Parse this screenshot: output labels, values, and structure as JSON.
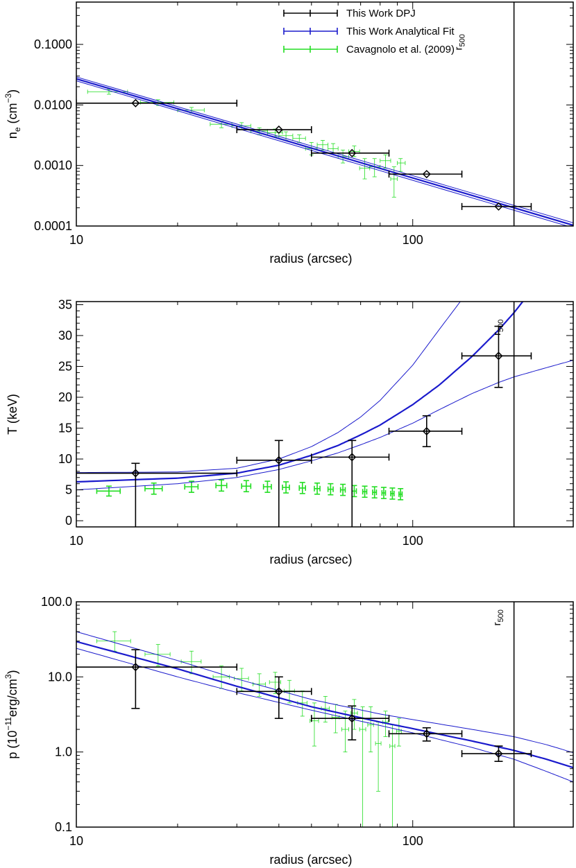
{
  "chart_data": [
    {
      "type": "scatter",
      "xlabel": "radius (arcsec)",
      "ylabel": "n",
      "ylabel_sub": "e",
      "ylabel_unit_pre": " (cm",
      "ylabel_unit_sup": "−3",
      "ylabel_unit_post": ")",
      "xscale": "log",
      "yscale": "log",
      "xlim": [
        10,
        300
      ],
      "ylim": [
        0.0001,
        0.5
      ],
      "xticks": [
        {
          "v": 10,
          "label": "10"
        },
        {
          "v": 100,
          "label": "100"
        }
      ],
      "yticks": [
        {
          "v": 0.0001,
          "label": "0.0001"
        },
        {
          "v": 0.001,
          "label": "0.0010"
        },
        {
          "v": 0.01,
          "label": "0.0100"
        },
        {
          "v": 0.1,
          "label": "0.1000"
        }
      ],
      "r500": {
        "x": 200,
        "label": "r",
        "sub": "500",
        "label_x": 140,
        "label_y": 0.08
      },
      "legend": {
        "position": "top-center",
        "entries": [
          {
            "label": "This Work DPJ",
            "color": "#000000"
          },
          {
            "label": "This Work Analytical Fit",
            "color": "#1a1acc"
          },
          {
            "label": "Cavagnolo et al. (2009)",
            "color": "#22dd22"
          }
        ]
      },
      "dpj": [
        {
          "x": 15,
          "y": 0.0107,
          "xlo": 10,
          "xhi": 30,
          "ylo": 0.0107,
          "yhi": 0.0107
        },
        {
          "x": 40,
          "y": 0.0039,
          "xlo": 30,
          "xhi": 50,
          "ylo": 0.0039,
          "yhi": 0.0039
        },
        {
          "x": 66,
          "y": 0.0016,
          "xlo": 50,
          "xhi": 85,
          "ylo": 0.0016,
          "yhi": 0.0016
        },
        {
          "x": 110,
          "y": 0.00072,
          "xlo": 85,
          "xhi": 140,
          "ylo": 0.00072,
          "yhi": 0.00072
        },
        {
          "x": 180,
          "y": 0.00021,
          "xlo": 140,
          "xhi": 225,
          "ylo": 0.00021,
          "yhi": 0.00021
        }
      ],
      "fit": {
        "x": [
          10,
          300
        ],
        "best": [
          0.027,
          0.000103
        ],
        "lower": [
          0.025,
          9.35e-05
        ],
        "upper": [
          0.029,
          0.000113
        ]
      },
      "cavagnolo": [
        {
          "x": 12.5,
          "y": 0.0165,
          "xlo": 10.8,
          "xhi": 14.2,
          "ylo": 0.015,
          "yhi": 0.018
        },
        {
          "x": 17.5,
          "y": 0.011,
          "xlo": 15.5,
          "xhi": 19.5,
          "ylo": 0.0098,
          "yhi": 0.0122
        },
        {
          "x": 22,
          "y": 0.0082,
          "xlo": 20,
          "xhi": 24,
          "ylo": 0.0073,
          "yhi": 0.0091
        },
        {
          "x": 27,
          "y": 0.0048,
          "xlo": 25,
          "xhi": 29,
          "ylo": 0.0042,
          "yhi": 0.0054
        },
        {
          "x": 31,
          "y": 0.0045,
          "xlo": 29,
          "xhi": 33,
          "ylo": 0.0039,
          "yhi": 0.0051
        },
        {
          "x": 35,
          "y": 0.0037,
          "xlo": 33,
          "xhi": 37,
          "ylo": 0.0032,
          "yhi": 0.0042
        },
        {
          "x": 39,
          "y": 0.0035,
          "xlo": 37,
          "xhi": 41,
          "ylo": 0.003,
          "yhi": 0.004
        },
        {
          "x": 42,
          "y": 0.0031,
          "xlo": 40,
          "xhi": 44,
          "ylo": 0.0026,
          "yhi": 0.0036
        },
        {
          "x": 46,
          "y": 0.0028,
          "xlo": 44,
          "xhi": 48,
          "ylo": 0.0024,
          "yhi": 0.0032
        },
        {
          "x": 50,
          "y": 0.0019,
          "xlo": 48,
          "xhi": 52,
          "ylo": 0.0015,
          "yhi": 0.0024
        },
        {
          "x": 54,
          "y": 0.0022,
          "xlo": 52,
          "xhi": 56,
          "ylo": 0.0018,
          "yhi": 0.0026
        },
        {
          "x": 58,
          "y": 0.0019,
          "xlo": 56,
          "xhi": 60,
          "ylo": 0.0016,
          "yhi": 0.0023
        },
        {
          "x": 62,
          "y": 0.0014,
          "xlo": 60,
          "xhi": 64.5,
          "ylo": 0.0011,
          "yhi": 0.0018
        },
        {
          "x": 67,
          "y": 0.0017,
          "xlo": 64.5,
          "xhi": 69.5,
          "ylo": 0.0014,
          "yhi": 0.0021
        },
        {
          "x": 72,
          "y": 0.0009,
          "xlo": 69.5,
          "xhi": 74.5,
          "ylo": 0.0006,
          "yhi": 0.0013
        },
        {
          "x": 77,
          "y": 0.00095,
          "xlo": 74.5,
          "xhi": 80,
          "ylo": 0.00065,
          "yhi": 0.0013
        },
        {
          "x": 83,
          "y": 0.0012,
          "xlo": 80,
          "xhi": 86,
          "ylo": 0.0009,
          "yhi": 0.0015
        },
        {
          "x": 88,
          "y": 0.0006,
          "xlo": 86,
          "xhi": 90,
          "ylo": 0.0003,
          "yhi": 0.00095
        },
        {
          "x": 92,
          "y": 0.0011,
          "xlo": 90,
          "xhi": 95,
          "ylo": 0.0008,
          "yhi": 0.0013
        }
      ]
    },
    {
      "type": "scatter",
      "xlabel": "radius (arcsec)",
      "ylabel": "T (keV)",
      "xscale": "log",
      "yscale": "linear",
      "xlim": [
        10,
        300
      ],
      "ylim": [
        -1,
        35.5
      ],
      "xticks": [
        {
          "v": 10,
          "label": "10"
        },
        {
          "v": 100,
          "label": "100"
        }
      ],
      "yticks": [
        {
          "v": 0,
          "label": "0"
        },
        {
          "v": 5,
          "label": "5"
        },
        {
          "v": 10,
          "label": "10"
        },
        {
          "v": 15,
          "label": "15"
        },
        {
          "v": 20,
          "label": "20"
        },
        {
          "v": 25,
          "label": "25"
        },
        {
          "v": 30,
          "label": "30"
        },
        {
          "v": 35,
          "label": "35"
        }
      ],
      "r500": {
        "x": 200,
        "label": "r",
        "sub": "500",
        "label_x": 182,
        "label_y": 30
      },
      "dpj": [
        {
          "x": 15,
          "y": 7.7,
          "xlo": 10,
          "xhi": 30,
          "ylo": -1,
          "yhi": 9.3
        },
        {
          "x": 40,
          "y": 9.8,
          "xlo": 30,
          "xhi": 50,
          "ylo": -1,
          "yhi": 13
        },
        {
          "x": 66,
          "y": 10.3,
          "xlo": 50,
          "xhi": 85,
          "ylo": -1,
          "yhi": 13
        },
        {
          "x": 110,
          "y": 14.5,
          "xlo": 85,
          "xhi": 140,
          "ylo": 12,
          "yhi": 17
        },
        {
          "x": 180,
          "y": 26.7,
          "xlo": 140,
          "xhi": 225,
          "ylo": 21.6,
          "yhi": 31.5
        }
      ],
      "fit": {
        "x": [
          10,
          20,
          30,
          40,
          50,
          60,
          70,
          80,
          100,
          120,
          150,
          180,
          200,
          250,
          300
        ],
        "best": [
          6.3,
          6.9,
          7.7,
          9.0,
          10.6,
          12.2,
          13.9,
          15.5,
          18.8,
          22.0,
          26.6,
          30.9,
          33.7,
          40.4,
          46.7
        ],
        "lower": [
          5.0,
          6.0,
          7.0,
          8.3,
          9.7,
          11.0,
          12.3,
          13.5,
          15.8,
          18.0,
          20.6,
          22.4,
          23.3,
          24.8,
          26.0
        ],
        "upper": [
          7.8,
          7.9,
          8.5,
          10.0,
          12.0,
          14.3,
          16.8,
          19.5,
          25.2,
          31.0,
          38.0,
          44.0,
          48.0,
          55.0,
          60.0
        ]
      },
      "cavagnolo": [
        {
          "x": 12.5,
          "y": 4.8,
          "xlo": 11.5,
          "xhi": 13.5,
          "ylo": 4.0,
          "yhi": 5.6
        },
        {
          "x": 17,
          "y": 5.2,
          "xlo": 16,
          "xhi": 18,
          "ylo": 4.3,
          "yhi": 6.1
        },
        {
          "x": 22,
          "y": 5.5,
          "xlo": 21,
          "xhi": 23,
          "ylo": 4.6,
          "yhi": 6.4
        },
        {
          "x": 27,
          "y": 5.7,
          "xlo": 26,
          "xhi": 28,
          "ylo": 4.8,
          "yhi": 6.6
        },
        {
          "x": 32,
          "y": 5.6,
          "xlo": 31,
          "xhi": 33,
          "ylo": 4.7,
          "yhi": 6.5
        },
        {
          "x": 37,
          "y": 5.5,
          "xlo": 36,
          "xhi": 38,
          "ylo": 4.6,
          "yhi": 6.4
        },
        {
          "x": 42,
          "y": 5.4,
          "xlo": 41,
          "xhi": 43,
          "ylo": 4.5,
          "yhi": 6.3
        },
        {
          "x": 47,
          "y": 5.3,
          "xlo": 46,
          "xhi": 48,
          "ylo": 4.4,
          "yhi": 6.2
        },
        {
          "x": 52,
          "y": 5.2,
          "xlo": 51,
          "xhi": 53,
          "ylo": 4.3,
          "yhi": 6.1
        },
        {
          "x": 57,
          "y": 5.1,
          "xlo": 56,
          "xhi": 58,
          "ylo": 4.2,
          "yhi": 6.0
        },
        {
          "x": 62,
          "y": 5.0,
          "xlo": 61,
          "xhi": 63,
          "ylo": 4.1,
          "yhi": 5.9
        },
        {
          "x": 67,
          "y": 4.8,
          "xlo": 66,
          "xhi": 68,
          "ylo": 3.9,
          "yhi": 5.7
        },
        {
          "x": 72,
          "y": 4.7,
          "xlo": 71,
          "xhi": 73,
          "ylo": 3.8,
          "yhi": 5.6
        },
        {
          "x": 77,
          "y": 4.6,
          "xlo": 76,
          "xhi": 78,
          "ylo": 3.7,
          "yhi": 5.5
        },
        {
          "x": 82,
          "y": 4.5,
          "xlo": 81,
          "xhi": 83,
          "ylo": 3.6,
          "yhi": 5.4
        },
        {
          "x": 87,
          "y": 4.4,
          "xlo": 86,
          "xhi": 88,
          "ylo": 3.5,
          "yhi": 5.3
        },
        {
          "x": 92,
          "y": 4.3,
          "xlo": 91,
          "xhi": 93,
          "ylo": 3.4,
          "yhi": 5.2
        }
      ]
    },
    {
      "type": "scatter",
      "xlabel": "radius (arcsec)",
      "ylabel": "p (10",
      "ylabel_sup": "−11",
      "ylabel_post": "erg/cm",
      "ylabel_sup2": "3",
      "ylabel_end": ")",
      "xscale": "log",
      "yscale": "log",
      "xlim": [
        10,
        300
      ],
      "ylim": [
        0.1,
        100
      ],
      "xticks": [
        {
          "v": 10,
          "label": "10"
        },
        {
          "v": 100,
          "label": "100"
        }
      ],
      "yticks": [
        {
          "v": 0.1,
          "label": "0.1"
        },
        {
          "v": 1,
          "label": "1.0"
        },
        {
          "v": 10,
          "label": "10.0"
        },
        {
          "v": 100,
          "label": "100.0"
        }
      ],
      "r500": {
        "x": 200,
        "label": "r",
        "sub": "500",
        "label_x": 182,
        "label_y": 48
      },
      "dpj": [
        {
          "x": 15,
          "y": 13.5,
          "xlo": 10,
          "xhi": 30,
          "ylo": 3.8,
          "yhi": 23
        },
        {
          "x": 40,
          "y": 6.4,
          "xlo": 30,
          "xhi": 50,
          "ylo": 2.8,
          "yhi": 10
        },
        {
          "x": 66,
          "y": 2.8,
          "xlo": 50,
          "xhi": 85,
          "ylo": 1.45,
          "yhi": 4.1
        },
        {
          "x": 110,
          "y": 1.75,
          "xlo": 85,
          "xhi": 140,
          "ylo": 1.4,
          "yhi": 2.1
        },
        {
          "x": 180,
          "y": 0.95,
          "xlo": 140,
          "xhi": 225,
          "ylo": 0.75,
          "yhi": 1.2
        }
      ],
      "fit": {
        "x": [
          10,
          20,
          30,
          50,
          80,
          100,
          150,
          200,
          250,
          300
        ],
        "best": [
          29.5,
          12.8,
          7.5,
          4.0,
          2.5,
          2.05,
          1.4,
          1.05,
          0.8,
          0.62
        ],
        "lower": [
          24.0,
          10.0,
          6.2,
          3.6,
          2.25,
          1.8,
          1.15,
          0.8,
          0.55,
          0.4
        ],
        "upper": [
          40.0,
          16.5,
          9.4,
          5.0,
          3.2,
          2.7,
          2.0,
          1.6,
          1.25,
          0.98
        ]
      },
      "cavagnolo": [
        {
          "x": 13,
          "y": 30,
          "xlo": 11.5,
          "xhi": 14.5,
          "ylo": 22,
          "yhi": 40
        },
        {
          "x": 17.5,
          "y": 20,
          "xlo": 16,
          "xhi": 19,
          "ylo": 14,
          "yhi": 27
        },
        {
          "x": 22,
          "y": 16,
          "xlo": 20.5,
          "xhi": 23.5,
          "ylo": 11,
          "yhi": 22
        },
        {
          "x": 27,
          "y": 10,
          "xlo": 25.5,
          "xhi": 28.5,
          "ylo": 7,
          "yhi": 14
        },
        {
          "x": 31,
          "y": 9.5,
          "xlo": 29.5,
          "xhi": 32.5,
          "ylo": 6.5,
          "yhi": 13
        },
        {
          "x": 35,
          "y": 8,
          "xlo": 33.5,
          "xhi": 36.5,
          "ylo": 5.5,
          "yhi": 11
        },
        {
          "x": 39,
          "y": 8.5,
          "xlo": 37.5,
          "xhi": 40.5,
          "ylo": 6,
          "yhi": 11.5
        },
        {
          "x": 43,
          "y": 6.5,
          "xlo": 41.5,
          "xhi": 44.5,
          "ylo": 4.5,
          "yhi": 9
        },
        {
          "x": 47,
          "y": 4.5,
          "xlo": 45.5,
          "xhi": 48.5,
          "ylo": 3,
          "yhi": 6.5
        },
        {
          "x": 51,
          "y": 2.6,
          "xlo": 49.5,
          "xhi": 52.5,
          "ylo": 1.2,
          "yhi": 4.5
        },
        {
          "x": 55,
          "y": 3.8,
          "xlo": 53.5,
          "xhi": 56.5,
          "ylo": 2.5,
          "yhi": 5.5
        },
        {
          "x": 59,
          "y": 2.9,
          "xlo": 57.5,
          "xhi": 60.5,
          "ylo": 1.8,
          "yhi": 4.3
        },
        {
          "x": 63,
          "y": 2.0,
          "xlo": 61.5,
          "xhi": 64.5,
          "ylo": 1.0,
          "yhi": 3.5
        },
        {
          "x": 67,
          "y": 3.3,
          "xlo": 65.5,
          "xhi": 68.5,
          "ylo": 2.0,
          "yhi": 5.0
        },
        {
          "x": 71,
          "y": 2.0,
          "xlo": 69.5,
          "xhi": 72.5,
          "ylo": 0.1,
          "yhi": 4.0
        },
        {
          "x": 75,
          "y": 2.3,
          "xlo": 73.5,
          "xhi": 76.5,
          "ylo": 1.0,
          "yhi": 4.0
        },
        {
          "x": 79,
          "y": 1.3,
          "xlo": 77.5,
          "xhi": 80.5,
          "ylo": 0.3,
          "yhi": 2.5
        },
        {
          "x": 83,
          "y": 2.5,
          "xlo": 81.5,
          "xhi": 84.5,
          "ylo": 1.6,
          "yhi": 3.5
        },
        {
          "x": 87,
          "y": 1.2,
          "xlo": 85.5,
          "xhi": 88.5,
          "ylo": 0.1,
          "yhi": 2.3
        },
        {
          "x": 91,
          "y": 1.9,
          "xlo": 89.5,
          "xhi": 92.5,
          "ylo": 1.2,
          "yhi": 2.8
        }
      ]
    }
  ]
}
